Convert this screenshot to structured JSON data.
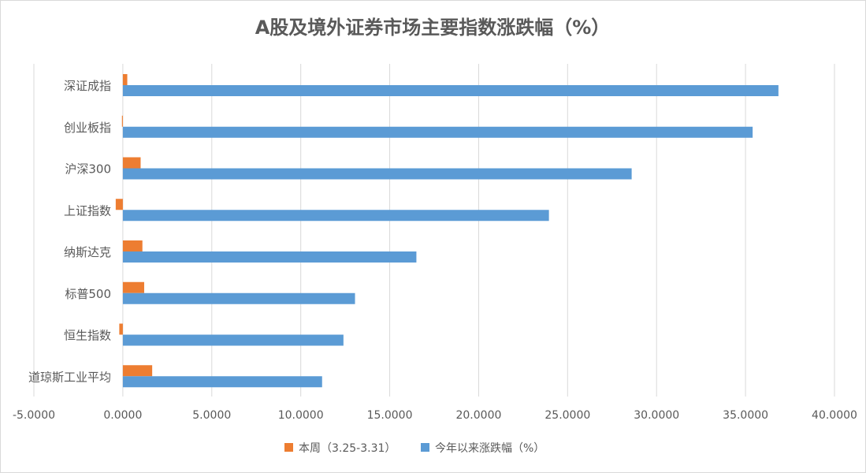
{
  "chart_data": {
    "type": "bar",
    "orientation": "horizontal",
    "title": "A股及境外证券市场主要指数涨跌幅（%）",
    "categories": [
      "深证成指",
      "创业板指",
      "沪深300",
      "上证指数",
      "纳斯达克",
      "标普500",
      "恒生指数",
      "道琼斯工业平均"
    ],
    "series": [
      {
        "name": "本周（3.25-3.31）",
        "color": "#ED7D31",
        "values": [
          0.25,
          -0.05,
          1.0,
          -0.4,
          1.1,
          1.2,
          -0.2,
          1.65
        ]
      },
      {
        "name": "今年以来涨跌幅（%）",
        "color": "#5B9BD5",
        "values": [
          36.85,
          35.4,
          28.6,
          23.95,
          16.5,
          13.05,
          12.4,
          11.2
        ]
      }
    ],
    "xlim": [
      -5,
      40
    ],
    "xticks": [
      -5,
      0,
      5,
      10,
      15,
      20,
      25,
      30,
      35,
      40
    ],
    "xtick_labels": [
      "-5.0000",
      "0.0000",
      "5.0000",
      "10.0000",
      "15.0000",
      "20.0000",
      "25.0000",
      "30.0000",
      "35.0000",
      "40.0000"
    ],
    "grid": "vertical",
    "legend": "bottom"
  }
}
